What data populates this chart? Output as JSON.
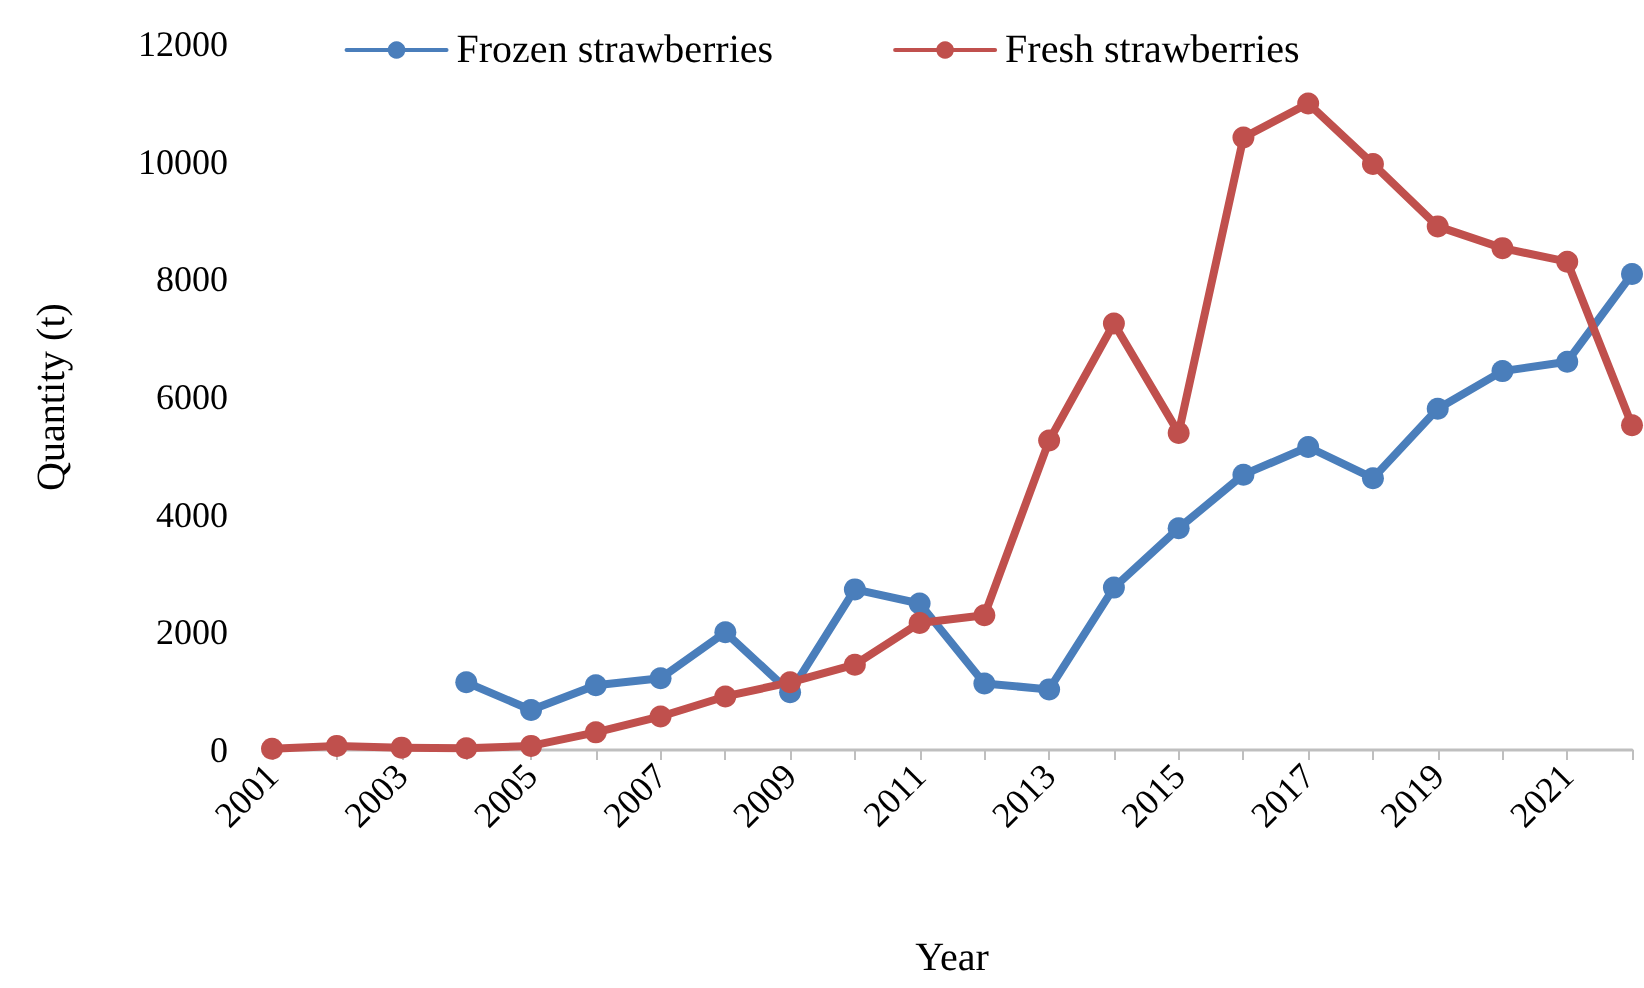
{
  "chart_data": {
    "type": "line",
    "xlabel": "Year",
    "ylabel": "Quantity (t)",
    "categories": [
      "2001",
      null,
      "2003",
      null,
      "2005",
      null,
      "2007",
      null,
      "2009",
      null,
      "2011",
      null,
      "2013",
      null,
      "2015",
      null,
      "2017",
      null,
      "2019",
      null,
      "2021",
      null
    ],
    "series": [
      {
        "name": "Frozen strawberries",
        "color": "#4a7ebb",
        "values": [
          null,
          null,
          null,
          1150,
          680,
          1100,
          1220,
          2000,
          980,
          2730,
          2490,
          1130,
          1030,
          2760,
          3770,
          4680,
          5150,
          4620,
          5800,
          6440,
          6600,
          8090
        ]
      },
      {
        "name": "Fresh strawberries",
        "color": "#c0504d",
        "values": [
          20,
          70,
          40,
          30,
          70,
          300,
          570,
          910,
          1150,
          1450,
          2160,
          2290,
          5260,
          7250,
          5390,
          10410,
          10990,
          9960,
          8900,
          8530,
          8300,
          5520
        ]
      }
    ],
    "ylim": [
      0,
      12000
    ],
    "yticks": [
      0,
      2000,
      4000,
      6000,
      8000,
      10000,
      12000
    ],
    "grid": false,
    "legend": "top",
    "marker": "circle",
    "line_style": "solid"
  }
}
